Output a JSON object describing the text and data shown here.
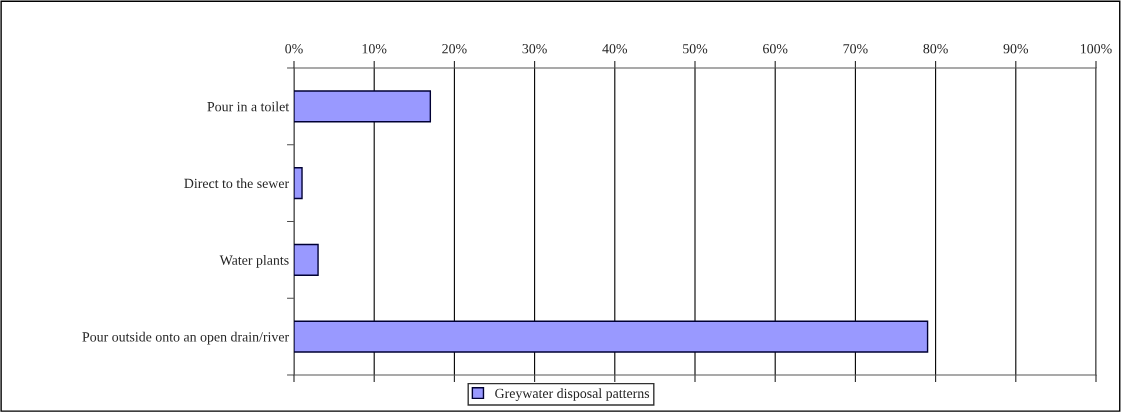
{
  "chart_data": {
    "type": "bar",
    "orientation": "horizontal",
    "categories": [
      "Pour in a toilet",
      "Direct to the sewer",
      "Water plants",
      "Pour outside onto an open drain/river"
    ],
    "series": [
      {
        "name": "Greywater disposal patterns",
        "color": "#9999ff",
        "values": [
          17,
          1,
          3,
          79
        ]
      }
    ],
    "xlim": [
      0,
      100
    ],
    "xticks": [
      {
        "value": 0,
        "label": "0%"
      },
      {
        "value": 10,
        "label": "10%"
      },
      {
        "value": 20,
        "label": "20%"
      },
      {
        "value": 30,
        "label": "30%"
      },
      {
        "value": 40,
        "label": "40%"
      },
      {
        "value": 50,
        "label": "50%"
      },
      {
        "value": 60,
        "label": "60%"
      },
      {
        "value": 70,
        "label": "70%"
      },
      {
        "value": 80,
        "label": "80%"
      },
      {
        "value": 90,
        "label": "90%"
      },
      {
        "value": 100,
        "label": "100%"
      }
    ],
    "grid": "x",
    "legend": "bottom"
  }
}
